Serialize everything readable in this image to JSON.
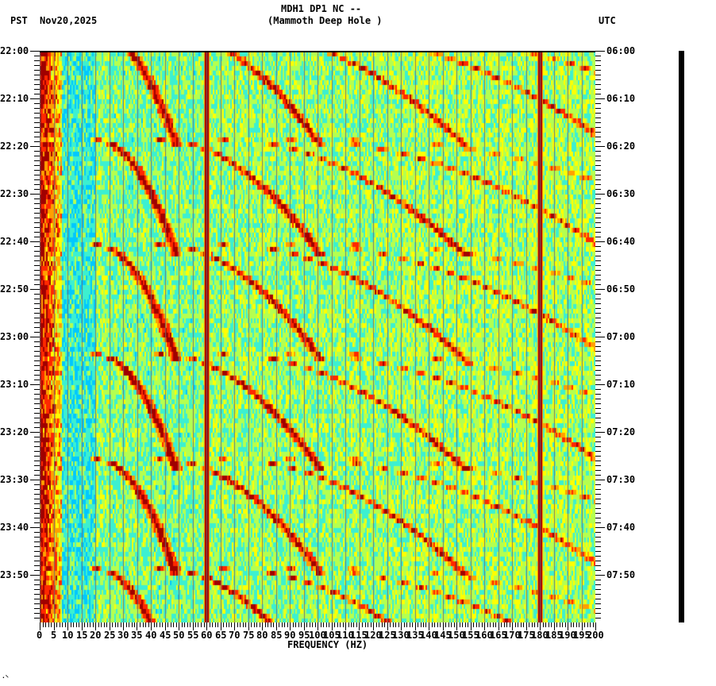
{
  "header": {
    "station_line": "MDH1 DP1 NC --",
    "station_name": "(Mammoth Deep Hole )",
    "left_timezone": "PST",
    "date": "Nov20,2025",
    "right_timezone": "UTC"
  },
  "footer": {
    "artifact": "·⸌"
  },
  "chart_data": {
    "type": "heatmap",
    "title": "MDH1 DP1 NC -- (Mammoth Deep Hole )",
    "subtitle": "Nov20,2025",
    "xlabel": "FREQUENCY (HZ)",
    "ylabel_left": "PST",
    "ylabel_right": "UTC",
    "xlim": [
      0,
      200
    ],
    "x_ticks": [
      0,
      5,
      10,
      15,
      20,
      25,
      30,
      35,
      40,
      45,
      50,
      55,
      60,
      65,
      70,
      75,
      80,
      85,
      90,
      95,
      100,
      105,
      110,
      115,
      120,
      125,
      130,
      135,
      140,
      145,
      150,
      155,
      160,
      165,
      170,
      175,
      180,
      185,
      190,
      195,
      200
    ],
    "x_tick_labels": [
      "0",
      "5",
      "10",
      "15",
      "20",
      "25",
      "30",
      "35",
      "40",
      "45",
      "50",
      "55",
      "60",
      "65",
      "70",
      "75",
      "80",
      "85",
      "90",
      "95",
      "100",
      "105",
      "110",
      "115",
      "120",
      "125",
      "130",
      "135",
      "140",
      "145",
      "150",
      "155",
      "160",
      "165",
      "170",
      "175",
      "180",
      "185",
      "190",
      "195",
      "200"
    ],
    "y_ticks_left": [
      "22:00",
      "22:10",
      "22:20",
      "22:30",
      "22:40",
      "22:50",
      "23:00",
      "23:10",
      "23:20",
      "23:30",
      "23:40",
      "23:50"
    ],
    "y_ticks_right": [
      "06:00",
      "06:10",
      "06:20",
      "06:30",
      "06:40",
      "06:50",
      "07:00",
      "07:10",
      "07:20",
      "07:30",
      "07:40",
      "07:50"
    ],
    "y_minor_per_major": 10,
    "time_span_minutes": 120,
    "colormap": [
      "#0a3cff",
      "#1e90ff",
      "#00c8ff",
      "#3cf0d0",
      "#b4ff50",
      "#ffff00",
      "#ffa000",
      "#ff2800",
      "#a00000"
    ],
    "persistent_lines_hz": [
      60,
      180
    ],
    "low_freq_energy_hz": [
      0,
      8
    ],
    "sweep_cycles_start_minutes": [
      -5,
      18,
      40,
      63,
      85,
      108
    ],
    "sweep_harmonic_start_hz": [
      20,
      43,
      66,
      90,
      113
    ],
    "grid_vertical": true,
    "legend": "none"
  }
}
